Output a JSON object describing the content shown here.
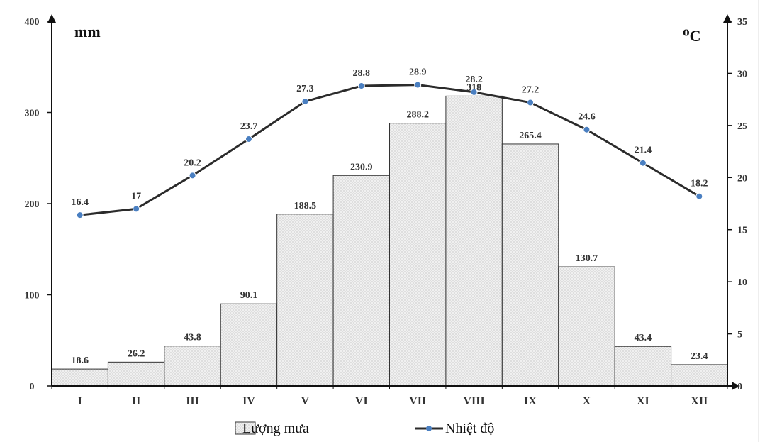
{
  "chart_data": {
    "type": "bar-line",
    "categories": [
      "I",
      "II",
      "III",
      "IV",
      "V",
      "VI",
      "VII",
      "VIII",
      "IX",
      "X",
      "XI",
      "XII"
    ],
    "series": [
      {
        "name": "Lượng mưa",
        "type": "bar",
        "axis": "left",
        "values": [
          18.6,
          26.2,
          43.8,
          90.1,
          188.5,
          230.9,
          288.2,
          318,
          265.4,
          130.7,
          43.4,
          23.4
        ]
      },
      {
        "name": "Nhiệt độ",
        "type": "line",
        "axis": "right",
        "values": [
          16.4,
          17,
          20.2,
          23.7,
          27.3,
          28.8,
          28.9,
          28.2,
          27.2,
          24.6,
          21.4,
          18.2
        ]
      }
    ],
    "ylabel_left": "mm",
    "ylabel_right": "⁰C",
    "ylim_left": [
      0,
      400
    ],
    "ylim_right": [
      0,
      35
    ],
    "yticks_left": [
      0,
      100,
      200,
      300,
      400
    ],
    "yticks_right": [
      0,
      5,
      10,
      15,
      20,
      25,
      30,
      35
    ],
    "legend_position": "bottom-center",
    "grid": false
  },
  "colors": {
    "bar_fill": "#f1f1f1",
    "bar_stroke": "#333333",
    "line": "#2b2b2b",
    "marker": "#4a7fc1",
    "axis": "#111111"
  }
}
